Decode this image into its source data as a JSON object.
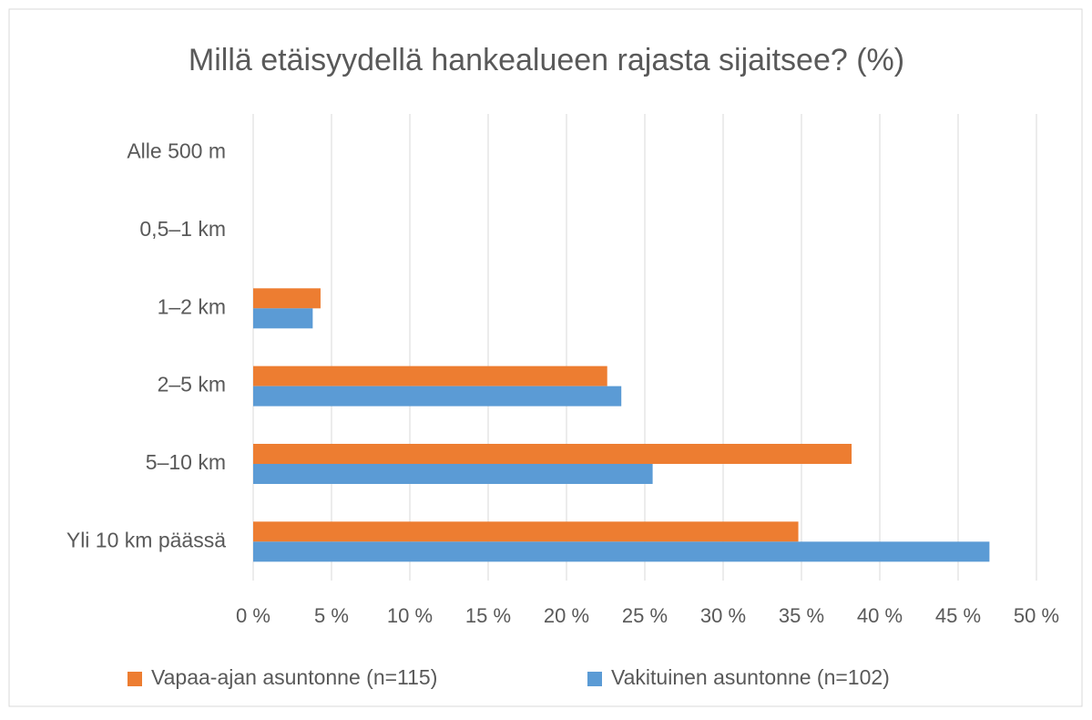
{
  "chart_data": {
    "type": "barh",
    "title": "Millä etäisyydellä hankealueen rajasta sijaitsee? (%)",
    "categories": [
      "Alle 500 m",
      "0,5–1 km",
      "1–2 km",
      "2–5 km",
      "5–10 km",
      "Yli 10 km päässä"
    ],
    "series": [
      {
        "name": "Vapaa-ajan asuntonne (n=115)",
        "color": "#ed7d31",
        "values": [
          0,
          0,
          4.3,
          22.6,
          38.2,
          34.8
        ]
      },
      {
        "name": "Vakituinen asuntonne (n=102)",
        "color": "#5b9bd5",
        "values": [
          0,
          0,
          3.8,
          23.5,
          25.5,
          47.0
        ]
      }
    ],
    "xlim": [
      0,
      50
    ],
    "xticks": [
      {
        "value": 0,
        "label": "0 %"
      },
      {
        "value": 5,
        "label": "5 %"
      },
      {
        "value": 10,
        "label": "10 %"
      },
      {
        "value": 15,
        "label": "15 %"
      },
      {
        "value": 20,
        "label": "20 %"
      },
      {
        "value": 25,
        "label": "25 %"
      },
      {
        "value": 30,
        "label": "30 %"
      },
      {
        "value": 35,
        "label": "35 %"
      },
      {
        "value": 40,
        "label": "40 %"
      },
      {
        "value": 45,
        "label": "45 %"
      },
      {
        "value": 50,
        "label": "50 %"
      }
    ],
    "grid": true,
    "legend": "bottom"
  }
}
